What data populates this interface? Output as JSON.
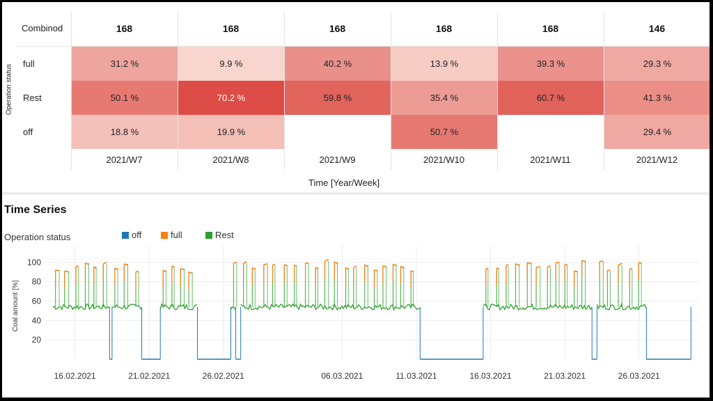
{
  "heatmap": {
    "row_header": "Combinod",
    "y_axis_label": "Operation status",
    "x_axis_label": "Time [Year/Week]",
    "columns": [
      "2021/W7",
      "2021/W8",
      "2021/W9",
      "2021/W10",
      "2021/W11",
      "2021/W12"
    ],
    "totals": [
      "168",
      "168",
      "168",
      "168",
      "168",
      "146"
    ],
    "rows": [
      {
        "label": "full",
        "values": [
          31.2,
          9.9,
          40.2,
          13.9,
          39.3,
          29.3
        ],
        "texts": [
          "31.2 %",
          "9.9 %",
          "40.2 %",
          "13.9 %",
          "39.3 %",
          "29.3 %"
        ]
      },
      {
        "label": "Rest",
        "values": [
          50.1,
          70.2,
          59.8,
          35.4,
          60.7,
          41.3
        ],
        "texts": [
          "50.1 %",
          "70.2 %",
          "59.8 %",
          "35.4 %",
          "60.7 %",
          "41.3 %"
        ]
      },
      {
        "label": "off",
        "values": [
          18.8,
          19.9,
          null,
          50.7,
          null,
          29.4
        ],
        "texts": [
          "18.8 %",
          "19.9 %",
          "",
          "50.7 %",
          "",
          "29.4 %"
        ]
      }
    ]
  },
  "chart_data": {
    "type": "line",
    "title": "Time Series",
    "legend_title": "Operation status",
    "legend_position": "top-left",
    "ylabel": "Coal amount [%]",
    "xlabel": "",
    "ylim": [
      0,
      110
    ],
    "yticks": [
      "20",
      "40",
      "60",
      "80",
      "100"
    ],
    "xticks": [
      "16.02.2021",
      "21.02.2021",
      "26.02.2021",
      "06.03.2021",
      "11.03.2021",
      "16.03.2021",
      "21.03.2021",
      "26.03.2021"
    ],
    "x_start": "2021-02-14",
    "x_end": "2021-03-30",
    "series": [
      {
        "name": "off",
        "color": "#1f77b4"
      },
      {
        "name": "full",
        "color": "#ff7f0e"
      },
      {
        "name": "Rest",
        "color": "#2ca02c"
      }
    ],
    "segments": [
      {
        "status": "active",
        "start": "2021-02-14T12:00",
        "end": "2021-02-18T08:00"
      },
      {
        "status": "off",
        "start": "2021-02-18T08:00",
        "end": "2021-02-18T12:00"
      },
      {
        "status": "active",
        "start": "2021-02-18T12:00",
        "end": "2021-02-20T12:00"
      },
      {
        "status": "off",
        "start": "2021-02-20T12:00",
        "end": "2021-02-21T18:00"
      },
      {
        "status": "active",
        "start": "2021-02-21T18:00",
        "end": "2021-02-24T06:00"
      },
      {
        "status": "off",
        "start": "2021-02-24T06:00",
        "end": "2021-02-26T12:00"
      },
      {
        "status": "active",
        "start": "2021-02-26T12:00",
        "end": "2021-02-26T20:00"
      },
      {
        "status": "off",
        "start": "2021-02-26T20:00",
        "end": "2021-02-27T04:00"
      },
      {
        "status": "active",
        "start": "2021-02-27T04:00",
        "end": "2021-03-11T06:00"
      },
      {
        "status": "off",
        "start": "2021-03-11T06:00",
        "end": "2021-03-15T12:00"
      },
      {
        "status": "active",
        "start": "2021-03-15T12:00",
        "end": "2021-03-22T20:00"
      },
      {
        "status": "off",
        "start": "2021-03-22T20:00",
        "end": "2021-03-23T04:00"
      },
      {
        "status": "active",
        "start": "2021-03-23T04:00",
        "end": "2021-03-26T12:00"
      },
      {
        "status": "off",
        "start": "2021-03-26T12:00",
        "end": "2021-03-29T12:00"
      }
    ],
    "rest_level": 54,
    "full_level": 95
  }
}
